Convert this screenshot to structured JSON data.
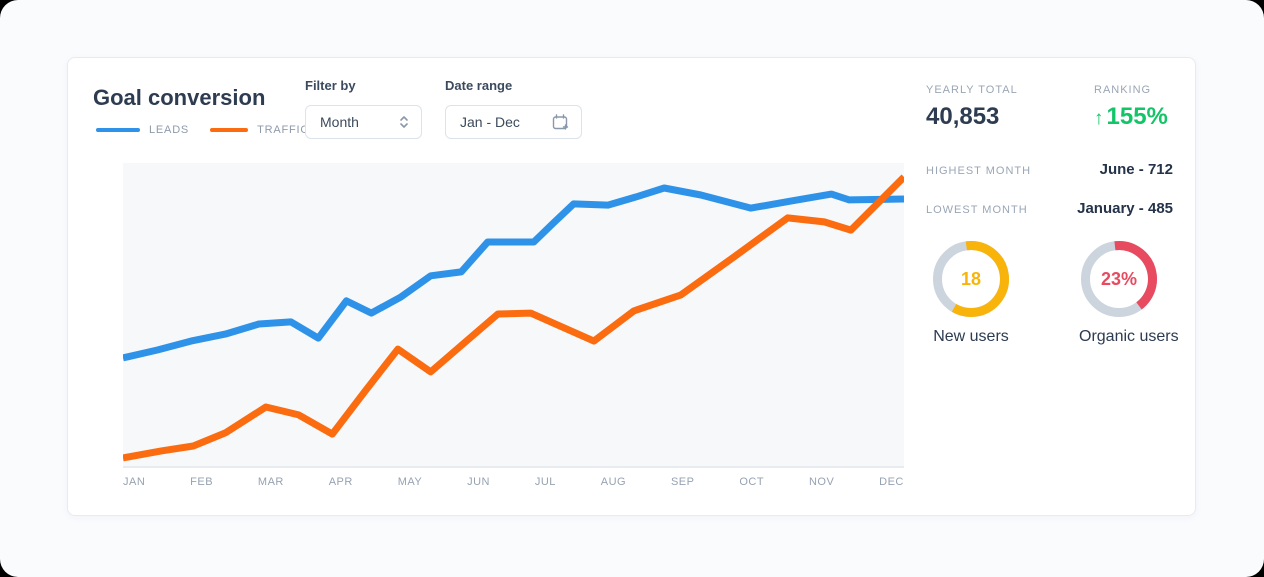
{
  "colors": {
    "leads": "#2e93e8",
    "traffic": "#fb6c10",
    "ranking_green": "#14c468",
    "donut_yellow": "#f8b40a",
    "donut_red": "#e84a60",
    "donut_track": "#ccd4de",
    "title_dark": "#2d3c50",
    "label_gray": "#9aa6b5"
  },
  "header": {
    "title": "Goal conversion",
    "legend": [
      {
        "label": "LEADS",
        "color": "#2e93e8"
      },
      {
        "label": "TRAFFIC",
        "color": "#fb6c10"
      }
    ]
  },
  "filters": {
    "filter_by": {
      "label": "Filter by",
      "value": "Month",
      "icon": "updown-chevron"
    },
    "date_range": {
      "label": "Date range",
      "value": "Jan - Dec",
      "icon": "calendar-plus"
    }
  },
  "stats": {
    "yearly_total": {
      "label": "YEARLY TOTAL",
      "value": "40,853"
    },
    "ranking": {
      "label": "RANKING",
      "arrow": "↑",
      "value": "155%"
    },
    "highest_month": {
      "label": "HIGHEST MONTH",
      "value": "June - 712"
    },
    "lowest_month": {
      "label": "LOWEST MONTH",
      "value": "January - 485"
    }
  },
  "donuts": [
    {
      "value": "18",
      "label": "New users",
      "color": "#f8b40a",
      "track_color": "#ccd4de",
      "start_deg": -8,
      "sweep_deg": 218
    },
    {
      "value": "23%",
      "label": "Organic users",
      "color": "#e84a60",
      "track_color": "#ccd4de",
      "start_deg": -7,
      "sweep_deg": 150
    }
  ],
  "chart_data": {
    "type": "line",
    "title": "Goal conversion",
    "categories": [
      "JAN",
      "FEB",
      "MAR",
      "APR",
      "MAY",
      "JUN",
      "JUL",
      "AUG",
      "SEP",
      "OCT",
      "NOV",
      "DEC"
    ],
    "xlabel": "",
    "ylabel": "",
    "ylim": [
      0,
      100
    ],
    "grid": false,
    "legend_position": "top-left",
    "note": "no y-axis ticks shown; values estimated on 0-100 scale; x in percent of plot width",
    "series": [
      {
        "name": "LEADS",
        "color": "#2e93e8",
        "points": [
          [
            0,
            36.1
          ],
          [
            4.4,
            38.7
          ],
          [
            8.7,
            41.6
          ],
          [
            13.1,
            43.9
          ],
          [
            17.4,
            47.2
          ],
          [
            21.5,
            47.9
          ],
          [
            25.0,
            42.6
          ],
          [
            28.6,
            54.8
          ],
          [
            31.8,
            50.8
          ],
          [
            35.6,
            56.1
          ],
          [
            39.4,
            63.0
          ],
          [
            43.3,
            64.3
          ],
          [
            46.7,
            74.1
          ],
          [
            52.6,
            74.1
          ],
          [
            55.1,
            80.3
          ],
          [
            57.7,
            86.6
          ],
          [
            62.1,
            86.2
          ],
          [
            65.7,
            88.9
          ],
          [
            69.3,
            91.8
          ],
          [
            74.0,
            89.5
          ],
          [
            80.4,
            85.2
          ],
          [
            85.5,
            87.5
          ],
          [
            90.7,
            89.8
          ],
          [
            93.0,
            87.9
          ],
          [
            100,
            88.2
          ]
        ]
      },
      {
        "name": "TRAFFIC",
        "color": "#fb6c10",
        "points": [
          [
            0,
            3.3
          ],
          [
            4.9,
            5.6
          ],
          [
            9.0,
            7.2
          ],
          [
            13.1,
            11.5
          ],
          [
            18.3,
            20.0
          ],
          [
            22.5,
            17.4
          ],
          [
            26.8,
            11.1
          ],
          [
            31.0,
            25.2
          ],
          [
            35.2,
            39.0
          ],
          [
            39.4,
            31.5
          ],
          [
            43.7,
            41.0
          ],
          [
            48.0,
            50.5
          ],
          [
            52.2,
            50.8
          ],
          [
            60.3,
            41.6
          ],
          [
            65.4,
            51.5
          ],
          [
            71.4,
            56.7
          ],
          [
            78.4,
            69.5
          ],
          [
            85.1,
            82.0
          ],
          [
            89.8,
            80.7
          ],
          [
            93.2,
            78.0
          ],
          [
            100,
            95.4
          ]
        ]
      }
    ]
  }
}
